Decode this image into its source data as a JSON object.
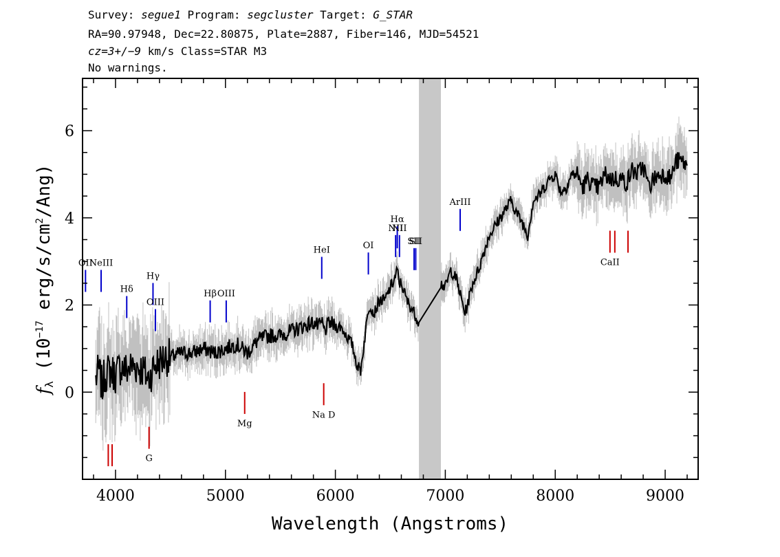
{
  "header": {
    "line1": {
      "survey_label": "Survey: ",
      "survey": "segue1",
      "program_label": " Program: ",
      "program": "segcluster",
      "target_label": " Target: ",
      "target": "G_STAR"
    },
    "line2": "RA=90.97948, Dec=22.80875, Plate=2887, Fiber=146, MJD=54521",
    "line3": {
      "cz_prefix": "cz",
      "cz_value": "=3+/−9",
      "cz_suffix": " km/s Class=STAR M3"
    },
    "line4": "No warnings."
  },
  "chart_data": {
    "type": "line",
    "xlabel": "Wavelength (Angstroms)",
    "ylabel_main": "f",
    "ylabel_sub": "λ",
    "ylabel_rest": " (10",
    "ylabel_exp": "−17",
    "ylabel_units": " erg/s/cm",
    "ylabel_exp2": "2",
    "ylabel_tail": "/Ang)",
    "xlim": [
      3700,
      9300
    ],
    "ylim": [
      -2.0,
      7.2
    ],
    "xticks": [
      4000,
      5000,
      6000,
      7000,
      8000,
      9000
    ],
    "yticks": [
      0,
      2,
      4,
      6
    ],
    "masked_region": [
      6760,
      6960
    ],
    "colors": {
      "flux": "#000000",
      "noise": "#c0c0c0",
      "mask": "#c8c8c8",
      "emission": "#0000cc",
      "absorption": "#cc0000"
    },
    "series": [
      {
        "role": "flux",
        "x": [
          3820,
          3850,
          3880,
          3900,
          3950,
          4000,
          4050,
          4100,
          4150,
          4200,
          4250,
          4300,
          4350,
          4400,
          4450,
          4500,
          4600,
          4700,
          4800,
          4900,
          5000,
          5100,
          5200,
          5300,
          5400,
          5500,
          5600,
          5700,
          5800,
          5850,
          5880,
          5900,
          5950,
          6000,
          6050,
          6100,
          6150,
          6200,
          6230,
          6250,
          6280,
          6300,
          6320,
          6350,
          6400,
          6450,
          6500,
          6540,
          6563,
          6580,
          6600,
          6650,
          6700,
          6720,
          6740,
          6760,
          6960,
          7000,
          7050,
          7100,
          7150,
          7180,
          7200,
          7250,
          7300,
          7350,
          7400,
          7450,
          7500,
          7550,
          7600,
          7650,
          7700,
          7750,
          7800,
          7850,
          7900,
          7950,
          8000,
          8050,
          8100,
          8150,
          8200,
          8250,
          8300,
          8350,
          8400,
          8450,
          8500,
          8550,
          8600,
          8650,
          8700,
          8750,
          8800,
          8850,
          8900,
          8950,
          9000,
          9050,
          9100,
          9150,
          9200
        ],
        "y": [
          0.3,
          0.5,
          0.1,
          0.4,
          0.5,
          0.4,
          0.6,
          0.5,
          0.6,
          0.6,
          0.5,
          0.3,
          0.6,
          0.7,
          0.8,
          0.8,
          0.9,
          0.9,
          1.0,
          0.9,
          1.0,
          1.1,
          0.9,
          1.2,
          1.3,
          1.3,
          1.4,
          1.5,
          1.6,
          1.5,
          1.6,
          1.4,
          1.6,
          1.5,
          1.5,
          1.3,
          1.1,
          0.6,
          0.5,
          0.9,
          1.5,
          1.9,
          2.0,
          1.8,
          2.1,
          2.1,
          2.4,
          2.6,
          2.8,
          2.5,
          2.5,
          2.1,
          1.9,
          1.8,
          1.7,
          1.6,
          2.5,
          2.4,
          2.8,
          2.6,
          2.1,
          1.8,
          2.0,
          2.5,
          2.8,
          3.2,
          3.6,
          3.8,
          4.0,
          4.2,
          4.4,
          4.1,
          3.9,
          3.6,
          4.4,
          4.5,
          4.7,
          4.9,
          5.0,
          4.6,
          4.7,
          5.0,
          5.0,
          4.7,
          4.9,
          4.7,
          4.7,
          5.0,
          4.9,
          4.9,
          4.9,
          4.8,
          5.1,
          5.0,
          5.2,
          4.7,
          4.9,
          5.0,
          5.0,
          4.9,
          5.3,
          5.3,
          5.2
        ]
      }
    ],
    "emission_lines": [
      {
        "label": "OII",
        "x": 3727,
        "y": 2.3
      },
      {
        "label": "NeIII",
        "x": 3869,
        "y": 2.3
      },
      {
        "label": "Hδ",
        "x": 4102,
        "y": 1.7
      },
      {
        "label": "Hγ",
        "x": 4341,
        "y": 2.0
      },
      {
        "label": "OIII",
        "x": 4363,
        "y": 1.4
      },
      {
        "label": "Hβ",
        "x": 4861,
        "y": 1.6
      },
      {
        "label": "OIII",
        "x": 5007,
        "y": 1.6
      },
      {
        "label": "HeI",
        "x": 5876,
        "y": 2.6
      },
      {
        "label": "OI",
        "x": 6300,
        "y": 2.7
      },
      {
        "label": "NII",
        "x": 6548,
        "y": 3.1
      },
      {
        "label": "Hα",
        "x": 6563,
        "y": 3.3
      },
      {
        "label": "NII",
        "x": 6583,
        "y": 3.1
      },
      {
        "label": "SII",
        "x": 6716,
        "y": 2.8
      },
      {
        "label": "SII",
        "x": 6731,
        "y": 2.8
      },
      {
        "label": "ArIII",
        "x": 7135,
        "y": 3.7
      }
    ],
    "absorption_lines": [
      {
        "label": "",
        "x": 3934,
        "y": -1.7
      },
      {
        "label": "",
        "x": 3969,
        "y": -1.7
      },
      {
        "label": "G",
        "x": 4305,
        "y": -1.3
      },
      {
        "label": "Mg",
        "x": 5175,
        "y": -0.5
      },
      {
        "label": "Na D",
        "x": 5894,
        "y": -0.3
      },
      {
        "label": "CaII",
        "x": 8498,
        "y": 3.2
      },
      {
        "label": "",
        "x": 8542,
        "y": 3.2
      },
      {
        "label": "",
        "x": 8662,
        "y": 3.2
      }
    ]
  }
}
